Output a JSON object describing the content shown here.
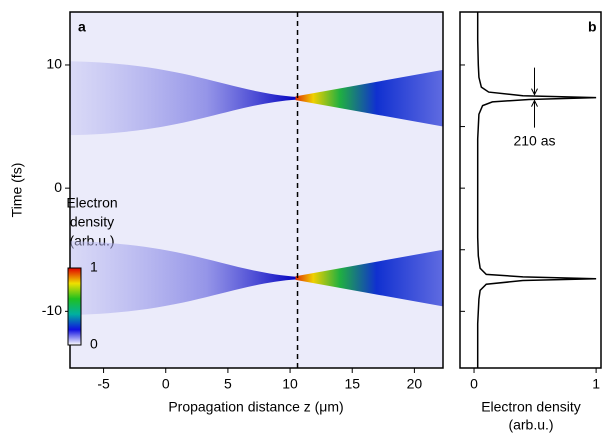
{
  "chart_data": [
    {
      "type": "heatmap",
      "panel_label": "a",
      "xlabel": "Propagation distance z (μm)",
      "ylabel": "Time (fs)",
      "xlim": [
        -7.7,
        22.3
      ],
      "xticks": [
        -5,
        0,
        5,
        10,
        15,
        20
      ],
      "ylim": [
        -14.6,
        14.3
      ],
      "yticks": [
        -10,
        0,
        10
      ],
      "pulse_times": [
        7.3,
        -7.3
      ],
      "focus_z": 10.6,
      "vline": 10.6,
      "colorbar_label": [
        "Electron",
        "density",
        "(arb.u.)"
      ],
      "colorbar_ticks": [
        0,
        1
      ],
      "colormap": [
        "#ffffff",
        "#1010e0",
        "#00b0a0",
        "#20c020",
        "#f0e000",
        "#e00000"
      ]
    },
    {
      "type": "line",
      "panel_label": "b",
      "xlabel": [
        "Electron density",
        "(arb.u.)"
      ],
      "xlim": [
        -0.115,
        1.04
      ],
      "xticks": [
        0,
        1
      ],
      "ylim": [
        -14.6,
        14.3
      ],
      "yticks": [
        -10,
        -5,
        0,
        5,
        10
      ],
      "annotation": "210 as",
      "color": "#000000",
      "x": [
        14.3,
        12,
        10,
        9,
        8.2,
        7.8,
        7.5,
        7.35,
        7.2,
        7.0,
        6.7,
        6,
        4,
        2,
        0,
        -2,
        -4,
        -5.5,
        -6.5,
        -7.0,
        -7.2,
        -7.35,
        -7.5,
        -7.8,
        -8.3,
        -9,
        -11,
        -14.6
      ],
      "values": [
        0.03,
        0.03,
        0.035,
        0.04,
        0.06,
        0.12,
        0.4,
        1.0,
        0.45,
        0.15,
        0.07,
        0.04,
        0.03,
        0.03,
        0.03,
        0.03,
        0.03,
        0.035,
        0.05,
        0.1,
        0.4,
        1.0,
        0.4,
        0.1,
        0.05,
        0.04,
        0.03,
        0.03
      ]
    }
  ]
}
